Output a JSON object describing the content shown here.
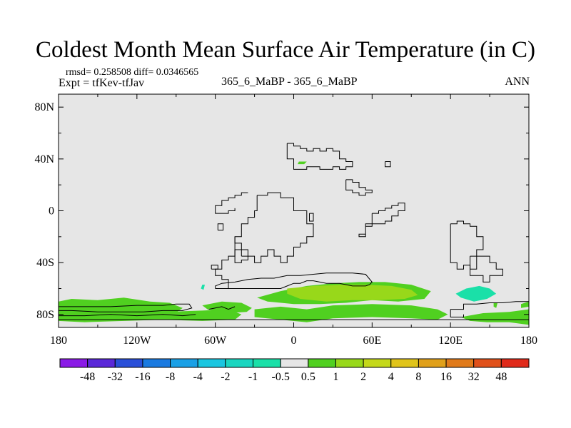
{
  "title": "Coldest Month Mean Surface Air Temperature (in C)",
  "stats": "rmsd= 0.258508  diff= 0.0346565",
  "experiment": "Expt = tfKev-tfJav",
  "center_label": "365_6_MaBP - 365_6_MaBP",
  "season": "ANN",
  "chart_data": {
    "type": "heatmap",
    "x_ticks": [
      "180",
      "120W",
      "60W",
      "0",
      "60E",
      "120E",
      "180"
    ],
    "x_values": [
      -180,
      -120,
      -60,
      0,
      60,
      120,
      180
    ],
    "y_ticks": [
      "80N",
      "40N",
      "0",
      "40S",
      "80S"
    ],
    "y_values": [
      80,
      40,
      0,
      -40,
      -80
    ],
    "xlim": [
      -180,
      180
    ],
    "ylim": [
      -90,
      90
    ],
    "background_color": "#e6e6e6",
    "colorbar": {
      "labels": [
        "-48",
        "-32",
        "-16",
        "-8",
        "-4",
        "-2",
        "-1",
        "-0.5",
        "0.5",
        "1",
        "2",
        "4",
        "8",
        "16",
        "32",
        "48"
      ],
      "colors": [
        "#8a1ae6",
        "#5a28d8",
        "#2a4fd8",
        "#1a7ae0",
        "#1aa0e6",
        "#1ac6e0",
        "#1ad6c0",
        "#1ae0a8",
        "#e6e6e6",
        "#50d020",
        "#98d81a",
        "#c4d81a",
        "#e0c41a",
        "#e0a01a",
        "#e07a1a",
        "#e0501a",
        "#e02a1a"
      ]
    },
    "anomaly_regions": [
      {
        "level": "1",
        "color": "#50d020",
        "lon": [
          -180,
          -170,
          -150,
          -130,
          -110,
          -95,
          -85,
          -92,
          -110,
          -130,
          -150,
          -170,
          -180
        ],
        "lat": [
          -70,
          -68,
          -69,
          -67,
          -70,
          -71,
          -75,
          -80,
          -83,
          -84,
          -82,
          -83,
          -82
        ]
      },
      {
        "level": "1",
        "color": "#50d020",
        "lon": [
          -180,
          -160,
          -130,
          -100,
          -70,
          -50,
          -40,
          -45,
          -70,
          -100,
          -130,
          -160,
          -180
        ],
        "lat": [
          -78,
          -77,
          -76,
          -78,
          -77,
          -76,
          -80,
          -84,
          -85,
          -84,
          -85,
          -86,
          -85
        ]
      },
      {
        "level": "1",
        "color": "#50d020",
        "lon": [
          -70,
          -55,
          -40,
          -32,
          -36,
          -52,
          -66
        ],
        "lat": [
          -73,
          -70,
          -71,
          -75,
          -78,
          -79,
          -76
        ]
      },
      {
        "level": "1",
        "color": "#50d020",
        "lon": [
          -28,
          -10,
          10,
          30,
          50,
          70,
          90,
          105,
          100,
          80,
          60,
          40,
          20,
          0,
          -20
        ],
        "lat": [
          -67,
          -62,
          -58,
          -56,
          -55,
          -55,
          -57,
          -62,
          -68,
          -70,
          -69,
          -71,
          -72,
          -72,
          -70
        ]
      },
      {
        "level": "1",
        "color": "#50d020",
        "lon": [
          -30,
          -10,
          10,
          30,
          60,
          90,
          110,
          118,
          110,
          90,
          60,
          30,
          10,
          -10,
          -30
        ],
        "lat": [
          -76,
          -74,
          -76,
          -73,
          -72,
          -73,
          -76,
          -80,
          -84,
          -83,
          -82,
          -83,
          -86,
          -84,
          -82
        ]
      },
      {
        "level": "1",
        "color": "#50d020",
        "lon": [
          128,
          145,
          165,
          180,
          180,
          165,
          148,
          135
        ],
        "lat": [
          -82,
          -79,
          -78,
          -76,
          -88,
          -86,
          -86,
          -85
        ]
      },
      {
        "level": "1",
        "color": "#50d020",
        "lon": [
          174,
          180,
          180,
          174
        ],
        "lat": [
          -72,
          -70,
          -74,
          -75
        ]
      },
      {
        "level": "1",
        "color": "#50d020",
        "lon": [
          4,
          10,
          8,
          3
        ],
        "lat": [
          38,
          38,
          36,
          36
        ]
      },
      {
        "level": "1",
        "color": "#50d020",
        "lon": [
          153,
          156,
          155,
          153
        ],
        "lat": [
          -71,
          -71,
          -75,
          -74
        ]
      },
      {
        "level": "2",
        "color": "#98d81a",
        "lon": [
          -5,
          15,
          35,
          55,
          75,
          90,
          95,
          85,
          65,
          45,
          25,
          5,
          -5
        ],
        "lat": [
          -60,
          -58,
          -57,
          -57,
          -58,
          -61,
          -65,
          -68,
          -69,
          -69,
          -70,
          -68,
          -64
        ]
      },
      {
        "level": "-0.5",
        "color": "#1ae0a8",
        "lon": [
          124,
          132,
          142,
          150,
          155,
          148,
          138,
          128
        ],
        "lat": [
          -64,
          -60,
          -58,
          -60,
          -64,
          -68,
          -70,
          -67
        ]
      },
      {
        "level": "-0.5",
        "color": "#1ae0a8",
        "lon": [
          -70,
          -68,
          -69,
          -71
        ],
        "lat": [
          -57,
          -57,
          -61,
          -60
        ]
      }
    ],
    "coastlines": [
      {
        "lon": [
          -5,
          0,
          0,
          5,
          5,
          10,
          10,
          15,
          15,
          20,
          20,
          25,
          25,
          30,
          30,
          35,
          35,
          40,
          40,
          45,
          45,
          40,
          40,
          35,
          35,
          30,
          30,
          20,
          20,
          10,
          10,
          0,
          0,
          -5,
          -5
        ],
        "lat": [
          52,
          52,
          50,
          50,
          48,
          48,
          46,
          46,
          48,
          48,
          46,
          46,
          48,
          48,
          46,
          46,
          40,
          40,
          38,
          38,
          34,
          34,
          32,
          32,
          34,
          34,
          32,
          32,
          34,
          34,
          32,
          32,
          40,
          40,
          52
        ]
      },
      {
        "lon": [
          40,
          45,
          45,
          50,
          50,
          55,
          55,
          60,
          60,
          55,
          55,
          50,
          50,
          45,
          45,
          40,
          40
        ],
        "lat": [
          24,
          24,
          22,
          22,
          18,
          18,
          16,
          16,
          14,
          14,
          12,
          12,
          14,
          14,
          16,
          16,
          24
        ]
      },
      {
        "lon": [
          70,
          74,
          74,
          70,
          70
        ],
        "lat": [
          38,
          38,
          34,
          34,
          38
        ]
      },
      {
        "lon": [
          -28,
          -20,
          -20,
          -10,
          -10,
          0,
          0,
          10,
          10,
          15,
          15,
          10,
          10,
          5,
          5,
          0,
          0,
          -5,
          -5,
          -10,
          -10,
          -15,
          -15,
          -20,
          -20,
          -25,
          -25,
          -30,
          -30,
          -35,
          -35,
          -40,
          -40,
          -45,
          -45,
          -40,
          -40,
          -35,
          -35,
          -30,
          -30,
          -28,
          -28
        ],
        "lat": [
          12,
          12,
          14,
          14,
          10,
          10,
          0,
          0,
          -10,
          -10,
          -20,
          -20,
          -25,
          -25,
          -28,
          -28,
          -35,
          -35,
          -40,
          -40,
          -35,
          -35,
          -30,
          -30,
          -35,
          -35,
          -40,
          -40,
          -35,
          -35,
          -38,
          -38,
          -40,
          -40,
          -20,
          -20,
          -10,
          -10,
          -5,
          -5,
          0,
          0,
          12
        ]
      },
      {
        "lon": [
          12,
          15,
          15,
          12,
          12
        ],
        "lat": [
          -2,
          -2,
          -8,
          -8,
          -2
        ]
      },
      {
        "lon": [
          -35,
          -40,
          -40,
          -45,
          -45,
          -50,
          -50,
          -55,
          -55,
          -60,
          -60,
          -50,
          -50,
          -45,
          -45
        ],
        "lat": [
          14,
          14,
          12,
          12,
          10,
          10,
          8,
          8,
          4,
          4,
          -2,
          -2,
          0,
          0,
          2
        ]
      },
      {
        "lon": [
          -40,
          -35,
          -35,
          -40,
          -40
        ],
        "lat": [
          -35,
          -35,
          -30,
          -30,
          -35
        ]
      },
      {
        "lon": [
          -45,
          -45,
          -40,
          -40,
          -45,
          -45,
          -50,
          -50,
          -55,
          -55,
          -60,
          -60,
          -55,
          -55,
          -50,
          -50
        ],
        "lat": [
          -20,
          -25,
          -25,
          -30,
          -30,
          -35,
          -35,
          -38,
          -38,
          -45,
          -45,
          -50,
          -50,
          -53,
          -53,
          -60
        ]
      },
      {
        "lon": [
          -58,
          -54,
          -54,
          -58,
          -58
        ],
        "lat": [
          -15,
          -15,
          -10,
          -10,
          -15
        ]
      },
      {
        "lon": [
          -63,
          -58,
          -58,
          -63,
          -63
        ],
        "lat": [
          -45,
          -45,
          -42,
          -42,
          -45
        ]
      },
      {
        "lon": [
          -60,
          -10,
          -5,
          0,
          5,
          10,
          15,
          20,
          25,
          35,
          45,
          55,
          58,
          60,
          55,
          45,
          35,
          25,
          15,
          5,
          -5,
          -15,
          -25,
          -35,
          -45,
          -55,
          -60,
          -60
        ],
        "lat": [
          -60,
          -60,
          -58,
          -56,
          -56,
          -54,
          -54,
          -55,
          -56,
          -56,
          -58,
          -58,
          -57,
          -55,
          -49,
          -48,
          -48,
          -48,
          -49,
          -50,
          -50,
          -52,
          -52,
          -53,
          -55,
          -56,
          -58,
          -60
        ]
      },
      {
        "lon": [
          120,
          125,
          125,
          130,
          130,
          135,
          135,
          140,
          140,
          145,
          145,
          140,
          140,
          135,
          135,
          130,
          130,
          125,
          125,
          120,
          120
        ],
        "lat": [
          -10,
          -10,
          -8,
          -8,
          -10,
          -10,
          -12,
          -12,
          -20,
          -20,
          -30,
          -30,
          -45,
          -45,
          -42,
          -42,
          -45,
          -45,
          -40,
          -40,
          -10
        ]
      },
      {
        "lon": [
          135,
          150,
          150,
          155,
          155,
          160,
          160,
          150,
          150,
          145,
          145,
          135,
          135
        ],
        "lat": [
          -35,
          -35,
          -40,
          -40,
          -45,
          -45,
          -50,
          -50,
          -55,
          -55,
          -50,
          -50,
          -35
        ]
      },
      {
        "lon": [
          60,
          65,
          65,
          70,
          70,
          75,
          75,
          80,
          80,
          85,
          85,
          80,
          80,
          75,
          75,
          70,
          70,
          60,
          60,
          55,
          55,
          50,
          50,
          55,
          55,
          60,
          60
        ],
        "lat": [
          -2,
          -2,
          0,
          0,
          2,
          2,
          4,
          4,
          6,
          6,
          0,
          0,
          -4,
          -4,
          -8,
          -8,
          -10,
          -10,
          -12,
          -12,
          -18,
          -18,
          -20,
          -20,
          -10,
          -10,
          -2
        ]
      },
      {
        "lon": [
          -180,
          -160,
          -140,
          -120,
          -100,
          -90,
          -80,
          -78,
          -85,
          -100,
          -115,
          -130,
          -150,
          -170,
          -180
        ],
        "lat": [
          -74,
          -74,
          -74,
          -73,
          -73,
          -72,
          -72,
          -75,
          -77,
          -77,
          -78,
          -78,
          -78,
          -77,
          -77
        ]
      },
      {
        "lon": [
          -180,
          -150,
          -120,
          -90,
          -60,
          -30,
          0,
          30,
          60,
          90,
          120,
          150,
          180
        ],
        "lat": [
          -84,
          -84,
          -84,
          -84,
          -84,
          -84,
          -84,
          -84,
          -84,
          -84,
          -84,
          -84,
          -84
        ]
      },
      {
        "lon": [
          -180,
          -160,
          -140,
          -120,
          -100,
          -85,
          -75
        ],
        "lat": [
          -81,
          -81,
          -80,
          -81,
          -80,
          -81,
          -80
        ]
      },
      {
        "lon": [
          -65,
          -55,
          -50,
          -45
        ],
        "lat": [
          -76,
          -74,
          -76,
          -74
        ]
      },
      {
        "lon": [
          120,
          130,
          130,
          140,
          150,
          160,
          170,
          180
        ],
        "lat": [
          -76,
          -76,
          -72,
          -72,
          -71,
          -71,
          -70,
          -70
        ]
      },
      {
        "lon": [
          120,
          120,
          130,
          130
        ],
        "lat": [
          -76,
          -82,
          -82,
          -80
        ]
      }
    ]
  }
}
